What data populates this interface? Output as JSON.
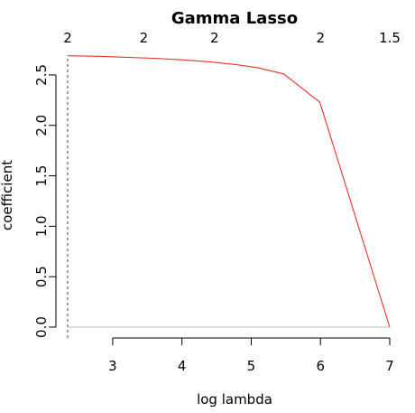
{
  "chart_data": {
    "type": "line",
    "title": "Gamma Lasso",
    "xlabel": "log lambda",
    "ylabel": "coefficient",
    "xlim": [
      2.35,
      7.0
    ],
    "ylim": [
      0.0,
      2.75
    ],
    "x_ticks": [
      "3",
      "4",
      "5",
      "6",
      "7"
    ],
    "y_ticks": [
      "0.0",
      "0.5",
      "1.0",
      "1.5",
      "2.0",
      "2.5"
    ],
    "top_axis": {
      "ticks": [
        {
          "x": 2.35,
          "label": "2"
        },
        {
          "x": 3.45,
          "label": "2"
        },
        {
          "x": 4.47,
          "label": "2"
        },
        {
          "x": 6.0,
          "label": "2"
        },
        {
          "x": 7.0,
          "label": "1.5"
        }
      ]
    },
    "series": [
      {
        "color": "#e8332a",
        "x": [
          2.35,
          2.8,
          3.2,
          3.6,
          4.0,
          4.4,
          4.8,
          5.1,
          5.47,
          5.99,
          7.0
        ],
        "y": [
          2.69,
          2.685,
          2.675,
          2.665,
          2.65,
          2.63,
          2.6,
          2.57,
          2.51,
          2.23,
          0.0
        ]
      }
    ],
    "reference_lines": [
      {
        "orientation": "vertical",
        "x": 2.35,
        "style": "dashed"
      },
      {
        "orientation": "horizontal",
        "y": 0.0,
        "style": "solid",
        "color": "#bbbbbb"
      }
    ],
    "grid": false,
    "legend": "none"
  }
}
